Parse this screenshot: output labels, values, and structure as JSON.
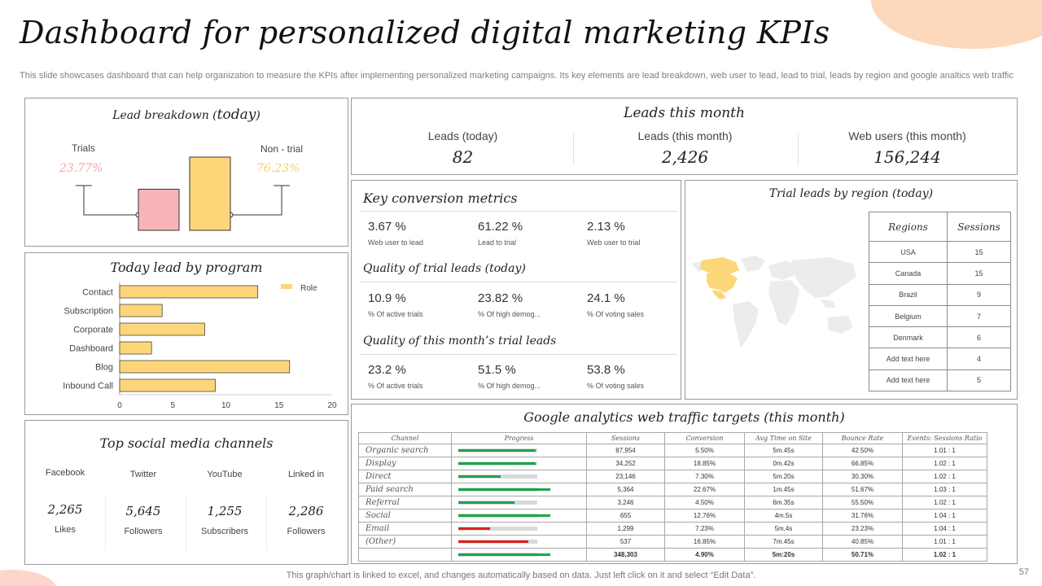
{
  "title": "Dashboard for personalized digital marketing KPIs",
  "subtitle": "This slide showcases dashboard that can help organization to measure the KPIs after implementing personalized marketing campaigns. Its key elements are lead breakdown, web user to lead, lead to trial, leads by region and google analtics web traffic",
  "lead_breakdown": {
    "title_prefix": "Lead breakdown (",
    "title_today": "today",
    "title_suffix": ")",
    "trials_label": "Trials",
    "trials_pct": "23.77%",
    "trials_value": 23.77,
    "nontrial_label": "Non - trial",
    "nontrial_pct": "76.23%",
    "nontrial_value": 76.23,
    "colors": {
      "trials": "#f8b4b8",
      "nontrial": "#fdd67a",
      "trials_text": "#f4a3a3",
      "nontrial_text": "#f6cf63"
    }
  },
  "leads_month": {
    "title": "Leads this month",
    "items": [
      {
        "label": "Leads (today)",
        "value": "82"
      },
      {
        "label": "Leads (this month)",
        "value": "2,426"
      },
      {
        "label": "Web users (this month)",
        "value": "156,244"
      }
    ]
  },
  "conversion": {
    "sections": [
      {
        "heading": "Key conversion metrics",
        "metrics": [
          {
            "value": "3.67 %",
            "label": "Web user to lead"
          },
          {
            "value": "61.22 %",
            "label": "Lead to trial"
          },
          {
            "value": "2.13 %",
            "label": "Web user to trial"
          }
        ]
      },
      {
        "heading": "Quality of trial leads (today)",
        "metrics": [
          {
            "value": "10.9 %",
            "label": "% Of active trials"
          },
          {
            "value": "23.82 %",
            "label": "% Of high demog..."
          },
          {
            "value": "24.1 %",
            "label": "% Of voting sales"
          }
        ]
      },
      {
        "heading": "Quality of this month’s trial leads",
        "metrics": [
          {
            "value": "23.2 %",
            "label": "% Of active trials"
          },
          {
            "value": "51.5 %",
            "label": "% Of high demog..."
          },
          {
            "value": "53.8 %",
            "label": "% Of voting sales"
          }
        ]
      }
    ]
  },
  "region": {
    "title": "Trial leads by region (today)",
    "headers": [
      "Regions",
      "Sessions"
    ],
    "rows": [
      [
        "USA",
        "15"
      ],
      [
        "Canada",
        "15"
      ],
      [
        "Brazil",
        "9"
      ],
      [
        "Belgium",
        "7"
      ],
      [
        "Denmark",
        "6"
      ],
      [
        "Add text here",
        "4"
      ],
      [
        "Add text here",
        "5"
      ]
    ],
    "colors": {
      "land": "#ececec",
      "highlight": "#fdd67a"
    }
  },
  "program": {
    "title": "Today lead by program",
    "legend": "Role",
    "color": "#fdd67a",
    "chart_data": {
      "type": "bar",
      "categories": [
        "Contact",
        "Subscription",
        "Corporate",
        "Dashboard",
        "Blog",
        "Inbound Call"
      ],
      "values": [
        13,
        4,
        8,
        3,
        16,
        9
      ],
      "xticks": [
        "0",
        "5",
        "10",
        "15",
        "20"
      ],
      "xlim": [
        0,
        20
      ]
    }
  },
  "social": {
    "title": "Top social media channels",
    "items": [
      {
        "name": "Facebook",
        "value": "2,265",
        "unit": "Likes"
      },
      {
        "name": "Twitter",
        "value": "5,645",
        "unit": "Followers"
      },
      {
        "name": "YouTube",
        "value": "1,255",
        "unit": "Subscribers"
      },
      {
        "name": "Linked in",
        "value": "2,286",
        "unit": "Followers"
      }
    ]
  },
  "ga": {
    "title": "Google analytics web traffic targets (this month)",
    "headers": [
      "Channel",
      "Progress",
      "Sessions",
      "Conversion",
      "Avg Time on Site",
      "Bounce Rate",
      "Events: Sessions Ratio"
    ],
    "rows": [
      {
        "channel": "Organic search",
        "progress": 0.8,
        "status": "green",
        "sessions": "87,954",
        "conversion": "5.50%",
        "avg_time": "5m.45s",
        "bounce": "42.50%",
        "ratio": "1.01 : 1"
      },
      {
        "channel": "Display",
        "progress": 0.8,
        "status": "green",
        "sessions": "34,252",
        "conversion": "18.85%",
        "avg_time": "0m.42s",
        "bounce": "66.85%",
        "ratio": "1.02 : 1"
      },
      {
        "channel": "Direct",
        "progress": 0.44,
        "status": "green",
        "sessions": "23,146",
        "conversion": "7.30%",
        "avg_time": "5m.20s",
        "bounce": "30.30%",
        "ratio": "1.02 : 1"
      },
      {
        "channel": "Paid search",
        "progress": 0.95,
        "status": "green",
        "sessions": "5,364",
        "conversion": "22.67%",
        "avg_time": "1m.45s",
        "bounce": "51.67%",
        "ratio": "1.03 : 1"
      },
      {
        "channel": "Referral",
        "progress": 0.58,
        "status": "green",
        "sessions": "3,246",
        "conversion": "4.50%",
        "avg_time": "6m.35s",
        "bounce": "55.50%",
        "ratio": "1.02 : 1"
      },
      {
        "channel": "Social",
        "progress": 0.95,
        "status": "green",
        "sessions": "655",
        "conversion": "12.76%",
        "avg_time": "4m.5s",
        "bounce": "31.76%",
        "ratio": "1.04 : 1"
      },
      {
        "channel": "Email",
        "progress": 0.33,
        "status": "red",
        "sessions": "1,299",
        "conversion": "7.23%",
        "avg_time": "5m.4s",
        "bounce": "23.23%",
        "ratio": "1.04 : 1"
      },
      {
        "channel": "(Other)",
        "progress": 0.72,
        "status": "red",
        "sessions": "537",
        "conversion": "16.85%",
        "avg_time": "7m.45s",
        "bounce": "40.85%",
        "ratio": "1.01 : 1"
      }
    ],
    "total": {
      "channel": "",
      "progress": 0.95,
      "status": "green",
      "sessions": "348,303",
      "conversion": "4.90%",
      "avg_time": "5m:20s",
      "bounce": "50.71%",
      "ratio": "1.02 : 1"
    },
    "colors": {
      "green": "#1aa64b",
      "red": "#e02020",
      "track": "#d9d9d9"
    }
  },
  "footer": "This graph/chart is linked to excel,  and changes automatically based on data. Just left click on it and select “Edit Data”.",
  "page_number": "57"
}
